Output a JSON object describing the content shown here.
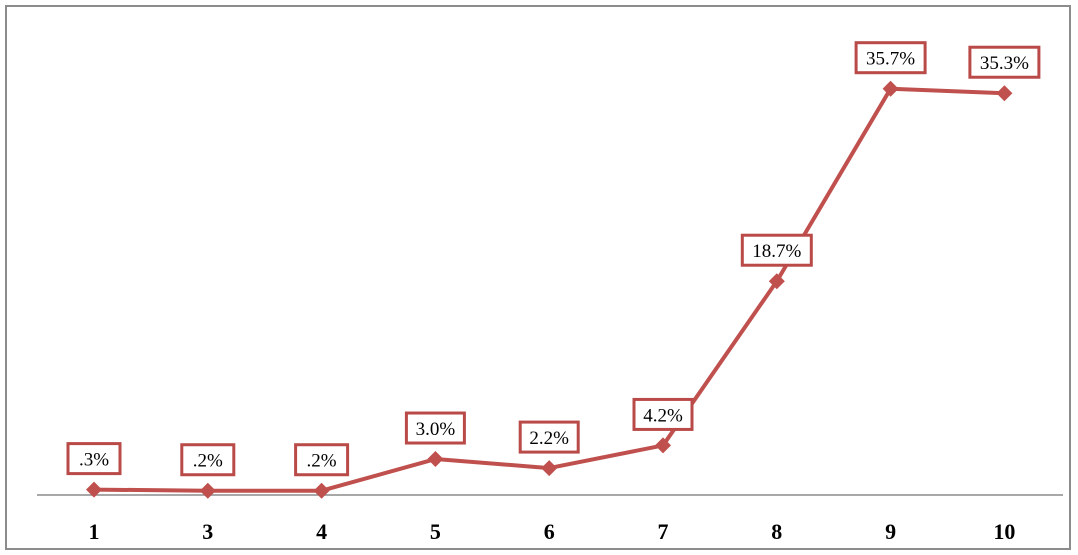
{
  "chart_data": {
    "type": "line",
    "title": "",
    "xlabel": "",
    "ylabel": "",
    "categories": [
      "1",
      "3",
      "4",
      "5",
      "6",
      "7",
      "8",
      "9",
      "10"
    ],
    "series": [
      {
        "values": [
          0.3,
          0.2,
          0.2,
          3.0,
          2.2,
          4.2,
          18.7,
          35.7,
          35.3
        ],
        "labels": [
          ".3%",
          ".2%",
          ".2%",
          "3.0%",
          "2.2%",
          "4.2%",
          "18.7%",
          "35.7%",
          "35.3%"
        ],
        "color": "#c0504d",
        "marker": "diamond"
      }
    ],
    "ylim": [
      0,
      40
    ],
    "grid": false,
    "legend": "none"
  }
}
